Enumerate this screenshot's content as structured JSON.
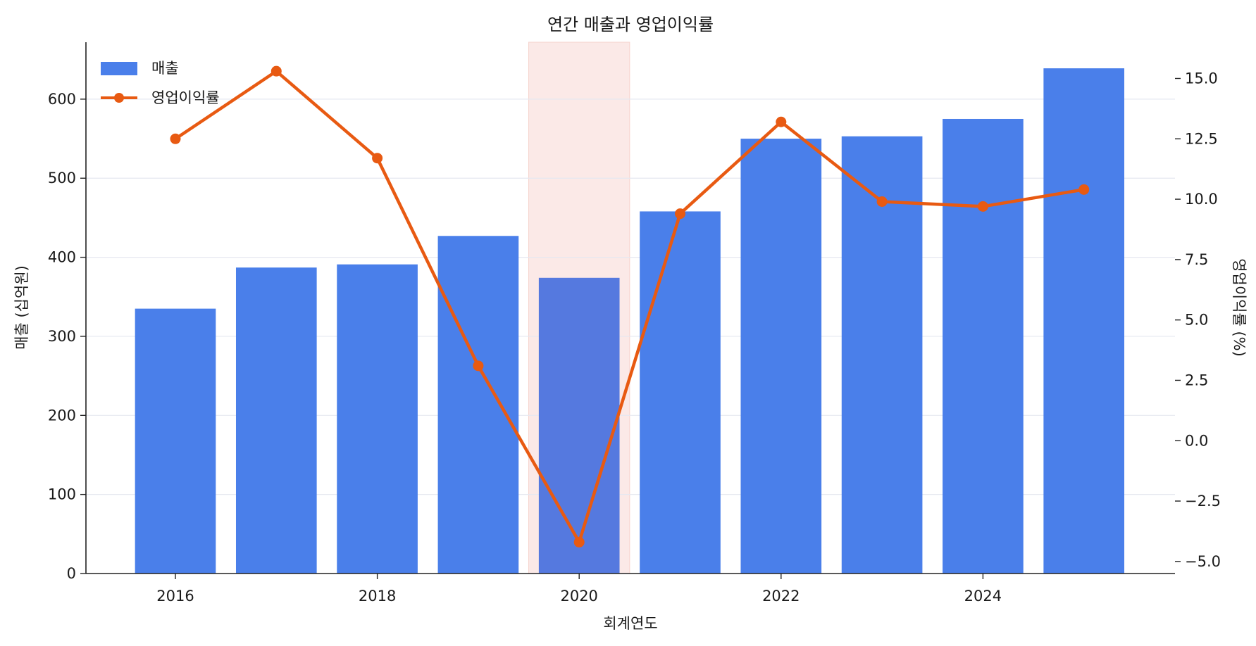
{
  "chart_data": {
    "type": "bar",
    "title": "연간 매출과 영업이익률",
    "xlabel": "회계연도",
    "ylabel": "매출 (십억원)",
    "y2label": "영업이익률 (%)",
    "x": [
      2016,
      2017,
      2018,
      2019,
      2020,
      2021,
      2022,
      2023,
      2024,
      2025
    ],
    "x_ticks": [
      "2016",
      "2018",
      "2020",
      "2022",
      "2024"
    ],
    "ylim": [
      0,
      672
    ],
    "y_ticks": [
      "0",
      "100",
      "200",
      "300",
      "400",
      "500",
      "600"
    ],
    "y2lim": [
      -5.5,
      16.5
    ],
    "y2_ticks": [
      "−5.0",
      "−2.5",
      "0.0",
      "2.5",
      "5.0",
      "7.5",
      "10.0",
      "12.5",
      "15.0"
    ],
    "grid": true,
    "legend_position": "top-left",
    "highlight_x": 2020,
    "series": [
      {
        "name": "매출",
        "type": "bar",
        "axis": "left",
        "color": "#4a7fea",
        "highlight_color": "#5579df",
        "values": [
          335,
          387,
          391,
          427,
          374,
          458,
          550,
          553,
          575,
          639
        ]
      },
      {
        "name": "영업이익률",
        "type": "line",
        "axis": "right",
        "color": "#e85a12",
        "values": [
          12.5,
          15.3,
          11.7,
          3.1,
          -4.2,
          9.4,
          13.2,
          9.9,
          9.7,
          10.4
        ]
      }
    ],
    "colors": {
      "highlight_band": "#fbe9e7",
      "grid": "#e6e8f0",
      "axis": "#222222"
    }
  }
}
